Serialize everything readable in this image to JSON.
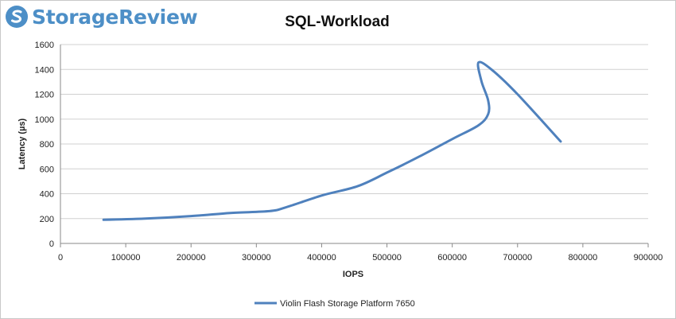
{
  "brand": {
    "name": "StorageReview",
    "icon": "storagereview-logo-icon"
  },
  "colors": {
    "brand": "#4d8fc7",
    "series": "#4f81bd",
    "grid": "#d0d0d0",
    "axis": "#8a8a8a"
  },
  "chart_data": {
    "type": "line",
    "title": "SQL-Workload",
    "xlabel": "IOPS",
    "ylabel": "Latency (µs)",
    "xlim": [
      0,
      900000
    ],
    "ylim": [
      0,
      1600
    ],
    "xticks": [
      "0",
      "100000",
      "200000",
      "300000",
      "400000",
      "500000",
      "600000",
      "700000",
      "800000",
      "900000"
    ],
    "yticks": [
      "0",
      "200",
      "400",
      "600",
      "800",
      "1000",
      "1200",
      "1400",
      "1600"
    ],
    "grid": true,
    "legend_position": "bottom",
    "series": [
      {
        "name": "Violin Flash Storage Platform 7650",
        "x": [
          66000,
          130000,
          200000,
          260000,
          320000,
          345000,
          400000,
          455000,
          500000,
          550000,
          600000,
          640000,
          655000,
          655000,
          645000,
          640000,
          660000,
          700000,
          766000
        ],
        "y": [
          190,
          200,
          220,
          245,
          260,
          290,
          385,
          460,
          570,
          700,
          840,
          950,
          1040,
          1150,
          1300,
          1455,
          1400,
          1200,
          820
        ]
      }
    ]
  }
}
